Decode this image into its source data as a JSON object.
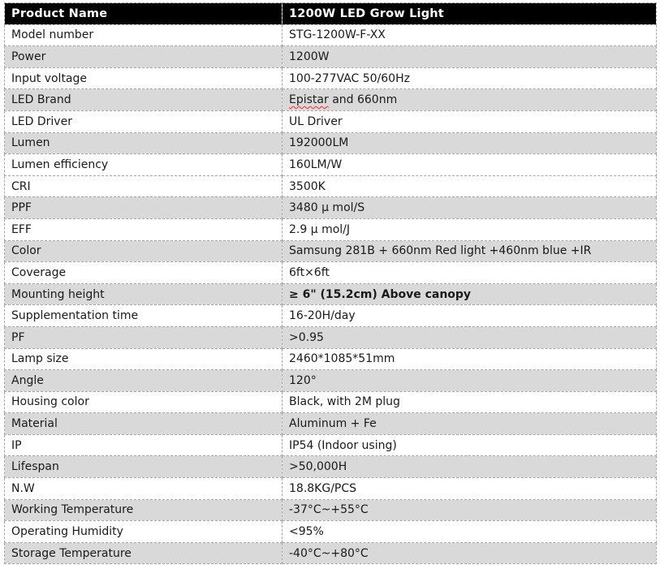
{
  "colors": {
    "header_bg": "#000000",
    "header_text": "#ffffff",
    "row_shade": "#d9d9d9",
    "row_plain": "#ffffff",
    "border": "#a6a6a6",
    "text": "#1a1a1a",
    "spellcheck_underline": "#ff2a2a"
  },
  "table": {
    "header": {
      "label": "Product Name",
      "value": "1200W LED Grow Light"
    },
    "rows": [
      {
        "label": "Model number",
        "value": "STG-1200W-F-XX",
        "shade": false
      },
      {
        "label": "Power",
        "value": "1200W",
        "shade": true
      },
      {
        "label": "Input voltage",
        "value": "100-277VAC 50/60Hz",
        "shade": false
      },
      {
        "label": "LED Brand",
        "shade": true,
        "value": "Epistar and 660nm",
        "parts": [
          {
            "text": "Epistar",
            "misspelled": true
          },
          {
            "text": " and 660nm",
            "misspelled": false
          }
        ]
      },
      {
        "label": "LED Driver",
        "value": "UL Driver",
        "shade": false
      },
      {
        "label": "Lumen",
        "value": "192000LM",
        "shade": true
      },
      {
        "label": "Lumen efficiency",
        "value": "160LM/W",
        "shade": false
      },
      {
        "label": "CRI",
        "value": "3500K",
        "shade": false
      },
      {
        "label": "PPF",
        "value": "3480 μ mol/S",
        "shade": true
      },
      {
        "label": "EFF",
        "value": "2.9 μ mol/J",
        "shade": false
      },
      {
        "label": "Color",
        "value": "Samsung 281B + 660nm Red light +460nm blue +IR",
        "shade": true
      },
      {
        "label": "Coverage",
        "value": "6ft×6ft",
        "shade": false
      },
      {
        "label": "Mounting height",
        "value": "≥ 6\" (15.2cm) Above canopy",
        "shade": true,
        "bold": true
      },
      {
        "label": "Supplementation time",
        "value": "16-20H/day",
        "shade": false
      },
      {
        "label": "PF",
        "value": ">0.95",
        "shade": true
      },
      {
        "label": "Lamp size",
        "value": "2460*1085*51mm",
        "shade": false
      },
      {
        "label": "Angle",
        "value": "120°",
        "shade": true
      },
      {
        "label": "Housing color",
        "value": "Black, with 2M plug",
        "shade": false
      },
      {
        "label": "Material",
        "value": "Aluminum + Fe",
        "shade": true
      },
      {
        "label": "IP",
        "value": "IP54 (Indoor using)",
        "shade": false
      },
      {
        "label": "Lifespan",
        "value": ">50,000H",
        "shade": true
      },
      {
        "label": "N.W",
        "value": "18.8KG/PCS",
        "shade": false
      },
      {
        "label": "Working Temperature",
        "value": "-37°C~+55°C",
        "shade": true
      },
      {
        "label": "Operating Humidity",
        "value": "<95%",
        "shade": false
      },
      {
        "label": "Storage Temperature",
        "value": "-40°C~+80°C",
        "shade": true
      }
    ]
  }
}
